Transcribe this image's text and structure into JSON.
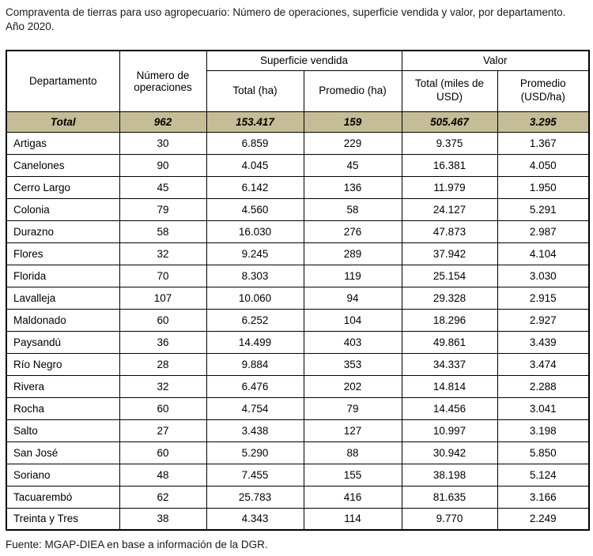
{
  "title": "Compraventa de tierras para uso agropecuario: Número de operaciones, superficie vendida y valor, por departamento. Año 2020.",
  "source": "Fuente: MGAP-DIEA en base a información de la DGR.",
  "highlight_color": "#c4bd97",
  "table": {
    "header": {
      "departamento": "Departamento",
      "operaciones": "Número de operaciones",
      "superficie_group": "Superficie vendida",
      "valor_group": "Valor",
      "superficie_total": "Total (ha)",
      "superficie_promedio": "Promedio (ha)",
      "valor_total": "Total (miles de USD)",
      "valor_promedio": "Promedio (USD/ha)"
    },
    "total_row": {
      "label": "Total",
      "values": [
        "962",
        "153.417",
        "159",
        "505.467",
        "3.295"
      ]
    },
    "rows": [
      {
        "departamento": "Artigas",
        "values": [
          "30",
          "6.859",
          "229",
          "9.375",
          "1.367"
        ]
      },
      {
        "departamento": "Canelones",
        "values": [
          "90",
          "4.045",
          "45",
          "16.381",
          "4.050"
        ]
      },
      {
        "departamento": "Cerro Largo",
        "values": [
          "45",
          "6.142",
          "136",
          "11.979",
          "1.950"
        ]
      },
      {
        "departamento": "Colonia",
        "values": [
          "79",
          "4.560",
          "58",
          "24.127",
          "5.291"
        ]
      },
      {
        "departamento": "Durazno",
        "values": [
          "58",
          "16.030",
          "276",
          "47.873",
          "2.987"
        ]
      },
      {
        "departamento": "Flores",
        "values": [
          "32",
          "9.245",
          "289",
          "37.942",
          "4.104"
        ]
      },
      {
        "departamento": "Florida",
        "values": [
          "70",
          "8.303",
          "119",
          "25.154",
          "3.030"
        ]
      },
      {
        "departamento": "Lavalleja",
        "values": [
          "107",
          "10.060",
          "94",
          "29.328",
          "2.915"
        ]
      },
      {
        "departamento": "Maldonado",
        "values": [
          "60",
          "6.252",
          "104",
          "18.296",
          "2.927"
        ]
      },
      {
        "departamento": "Paysandú",
        "values": [
          "36",
          "14.499",
          "403",
          "49.861",
          "3.439"
        ]
      },
      {
        "departamento": "Río Negro",
        "values": [
          "28",
          "9.884",
          "353",
          "34.337",
          "3.474"
        ]
      },
      {
        "departamento": "Rivera",
        "values": [
          "32",
          "6.476",
          "202",
          "14.814",
          "2.288"
        ]
      },
      {
        "departamento": "Rocha",
        "values": [
          "60",
          "4.754",
          "79",
          "14.456",
          "3.041"
        ]
      },
      {
        "departamento": "Salto",
        "values": [
          "27",
          "3.438",
          "127",
          "10.997",
          "3.198"
        ]
      },
      {
        "departamento": "San José",
        "values": [
          "60",
          "5.290",
          "88",
          "30.942",
          "5.850"
        ]
      },
      {
        "departamento": "Soriano",
        "values": [
          "48",
          "7.455",
          "155",
          "38.198",
          "5.124"
        ]
      },
      {
        "departamento": "Tacuarembó",
        "values": [
          "62",
          "25.783",
          "416",
          "81.635",
          "3.166"
        ]
      },
      {
        "departamento": "Treinta y Tres",
        "values": [
          "38",
          "4.343",
          "114",
          "9.770",
          "2.249"
        ]
      }
    ]
  }
}
